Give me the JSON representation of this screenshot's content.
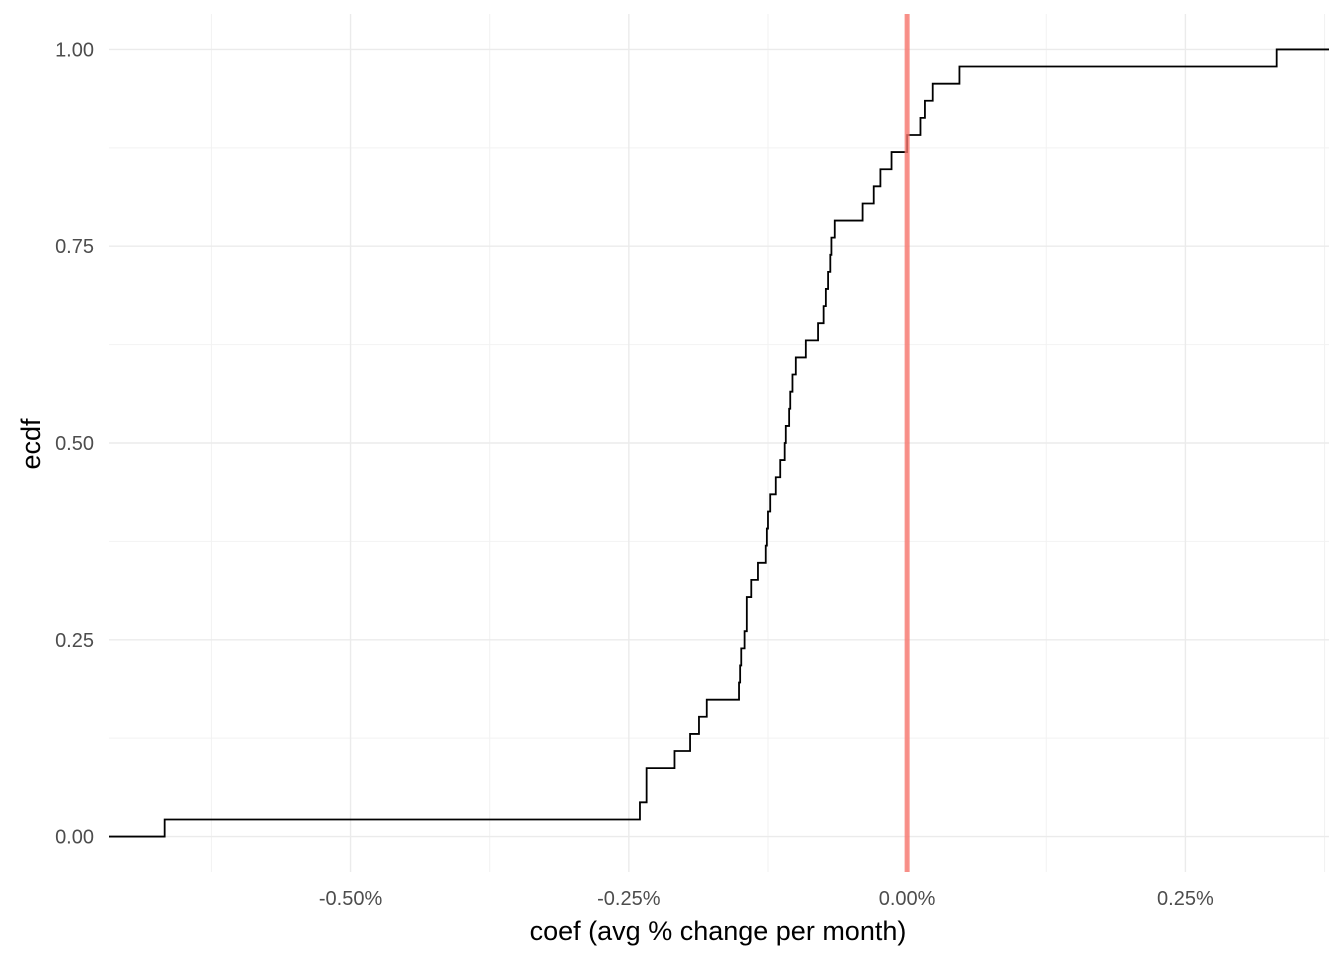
{
  "chart_data": {
    "type": "line",
    "step": true,
    "title": "",
    "xlabel": "coef (avg % change per month)",
    "ylabel": "ecdf",
    "xlim": [
      -0.717,
      0.379
    ],
    "ylim": [
      -0.045,
      1.045
    ],
    "x_ticks": [
      {
        "value": -0.5,
        "label": "-0.50%"
      },
      {
        "value": -0.25,
        "label": "-0.25%"
      },
      {
        "value": 0.0,
        "label": "0.00%"
      },
      {
        "value": 0.25,
        "label": "0.25%"
      }
    ],
    "x_minor_ticks": [
      -0.625,
      -0.375,
      -0.125,
      0.125,
      0.375
    ],
    "y_ticks": [
      {
        "value": 0.0,
        "label": "0.00"
      },
      {
        "value": 0.25,
        "label": "0.25"
      },
      {
        "value": 0.5,
        "label": "0.50"
      },
      {
        "value": 0.75,
        "label": "0.75"
      },
      {
        "value": 1.0,
        "label": "1.00"
      }
    ],
    "y_minor_ticks": [
      0.125,
      0.375,
      0.625,
      0.875
    ],
    "grid": true,
    "reference_line": {
      "x": 0.0,
      "color": "#f8766d"
    },
    "series": [
      {
        "color": "#000000",
        "x": [
          -0.667,
          -0.24,
          -0.234,
          -0.209,
          -0.195,
          -0.187,
          -0.18,
          -0.151,
          -0.15,
          -0.149,
          -0.146,
          -0.144,
          -0.14,
          -0.134,
          -0.127,
          -0.126,
          -0.125,
          -0.123,
          -0.118,
          -0.114,
          -0.11,
          -0.109,
          -0.106,
          -0.105,
          -0.103,
          -0.1,
          -0.091,
          -0.08,
          -0.075,
          -0.073,
          -0.071,
          -0.069,
          -0.068,
          -0.065,
          -0.064,
          -0.063,
          -0.04,
          -0.03,
          -0.024,
          -0.014,
          -0.0,
          0.012,
          0.016,
          0.023,
          0.047,
          0.332
        ],
        "y": [
          0.0217,
          0.0435,
          0.087,
          0.1087,
          0.1304,
          0.1522,
          0.1739,
          0.1957,
          0.2174,
          0.2391,
          0.2609,
          0.3043,
          0.3261,
          0.3478,
          0.3696,
          0.3913,
          0.413,
          0.4348,
          0.4565,
          0.4783,
          0.5,
          0.5217,
          0.5435,
          0.5652,
          0.587,
          0.6087,
          0.6304,
          0.6522,
          0.6739,
          0.6957,
          0.7174,
          0.7391,
          0.7609,
          0.7826,
          0.7826,
          0.7826,
          0.8043,
          0.8261,
          0.8478,
          0.8696,
          0.8913,
          0.913,
          0.9348,
          0.9565,
          0.9783,
          1.0
        ]
      }
    ]
  }
}
